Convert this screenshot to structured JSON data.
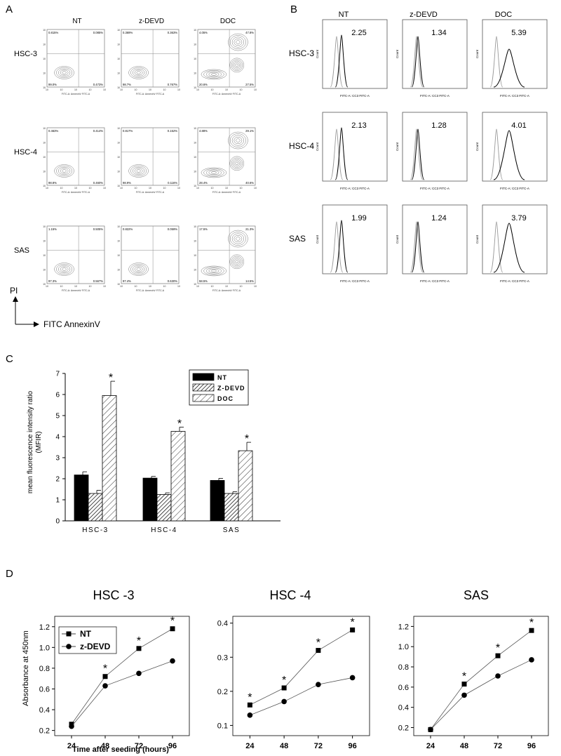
{
  "panel_letters": {
    "a": "A",
    "b": "B",
    "c": "C",
    "d": "D"
  },
  "treatments": [
    "NT",
    "z-DEVD",
    "DOC"
  ],
  "cell_lines": [
    "HSC-3",
    "HSC-4",
    "SAS"
  ],
  "panel_a": {
    "y_axis_label": "PI",
    "x_axis_label": "FITC AnnexinV",
    "plot_x_label": "FITC-A: AnnexinV FITC-A",
    "quadrants": [
      [
        [
          "0.815%",
          "0.085%",
          "99.0%",
          "0.473%"
        ],
        [
          "0.369%",
          "0.363%",
          "98.7%",
          "0.767%"
        ],
        [
          "4.05%",
          "47.8%",
          "20.6%",
          "27.5%"
        ]
      ],
      [
        [
          "0.463%",
          "0.414%",
          "98.8%",
          "0.460%"
        ],
        [
          "0.817%",
          "0.152%",
          "98.9%",
          "0.116%"
        ],
        [
          "4.88%",
          "29.1%",
          "28.4%",
          "40.6%"
        ]
      ],
      [
        [
          "1.15%",
          "0.505%",
          "97.3%",
          "0.567%"
        ],
        [
          "0.822%",
          "0.059%",
          "97.4%",
          "0.630%"
        ],
        [
          "17.5%",
          "21.3%",
          "58.5%",
          "14.5%"
        ]
      ]
    ]
  },
  "panel_b": {
    "y_axis_label": "Count",
    "x_axis_label": "FITC-A: CC3 FITC-A",
    "values": [
      [
        "2.25",
        "1.34",
        "5.39"
      ],
      [
        "2.13",
        "1.28",
        "4.01"
      ],
      [
        "1.99",
        "1.24",
        "3.79"
      ]
    ]
  },
  "panel_c": {
    "chart_data": {
      "type": "bar",
      "categories": [
        "HSC-3",
        "HSC-4",
        "SAS"
      ],
      "series": [
        {
          "name": "NT",
          "values": [
            2.18,
            2.03,
            1.92
          ],
          "errors": [
            0.15,
            0.08,
            0.1
          ],
          "fill": "#000000"
        },
        {
          "name": "Z-DEVD",
          "values": [
            1.3,
            1.25,
            1.3
          ],
          "errors": [
            0.15,
            0.08,
            0.08
          ],
          "fill": "dense-hatch"
        },
        {
          "name": "DOC",
          "values": [
            5.95,
            4.25,
            3.33
          ],
          "errors": [
            0.68,
            0.2,
            0.4
          ],
          "fill": "sparse-hatch"
        }
      ],
      "ylabel": "mean fluorescence intensity ratio (MFIR)",
      "ylabel_line1": "mean fluorescence intensity ratio",
      "ylabel_line2": "(MFIR)",
      "ylim": [
        0,
        7
      ],
      "yticks": [
        "0",
        "1",
        "2",
        "3",
        "4",
        "5",
        "6",
        "7"
      ],
      "significance": [
        [
          false,
          true,
          true
        ],
        [
          false,
          true,
          true
        ],
        [
          false,
          true,
          true
        ]
      ],
      "marker": "*",
      "legend": "top-right"
    }
  },
  "panel_d": {
    "ylabel": "Absorbance at 450nm",
    "xlabel": "Time after seeding (hours)",
    "legend": [
      "NT",
      "z-DEVD"
    ],
    "marker": "*",
    "chart_data": [
      {
        "type": "line",
        "title": "HSC -3",
        "x": [
          24,
          48,
          72,
          96
        ],
        "series": [
          {
            "name": "NT",
            "marker": "square",
            "values": [
              0.26,
              0.72,
              0.99,
              1.18
            ]
          },
          {
            "name": "z-DEVD",
            "marker": "circle",
            "values": [
              0.24,
              0.63,
              0.75,
              0.87
            ]
          }
        ],
        "ylim": [
          0.15,
          1.3
        ],
        "yticks": [
          "0.2",
          "0.4",
          "0.6",
          "0.8",
          "1.0",
          "1.2"
        ],
        "xticks": [
          "24",
          "48",
          "72",
          "96"
        ],
        "significant_x": [
          48,
          72,
          96
        ]
      },
      {
        "type": "line",
        "title": "HSC -4",
        "x": [
          24,
          48,
          72,
          96
        ],
        "series": [
          {
            "name": "NT",
            "marker": "square",
            "values": [
              0.16,
              0.21,
              0.32,
              0.38
            ]
          },
          {
            "name": "z-DEVD",
            "marker": "circle",
            "values": [
              0.13,
              0.17,
              0.22,
              0.24
            ]
          }
        ],
        "ylim": [
          0.07,
          0.42
        ],
        "yticks": [
          "0.1",
          "0.2",
          "0.3",
          "0.4"
        ],
        "xticks": [
          "24",
          "48",
          "72",
          "96"
        ],
        "significant_x": [
          24,
          48,
          72,
          96
        ]
      },
      {
        "type": "line",
        "title": "SAS",
        "x": [
          24,
          48,
          72,
          96
        ],
        "series": [
          {
            "name": "NT",
            "marker": "square",
            "values": [
              0.18,
              0.63,
              0.91,
              1.16
            ]
          },
          {
            "name": "z-DEVD",
            "marker": "circle",
            "values": [
              0.18,
              0.52,
              0.71,
              0.87
            ]
          }
        ],
        "ylim": [
          0.12,
          1.3
        ],
        "yticks": [
          "0.2",
          "0.4",
          "0.6",
          "0.8",
          "1.0",
          "1.2"
        ],
        "xticks": [
          "24",
          "48",
          "72",
          "96"
        ],
        "significant_x": [
          48,
          72,
          96
        ]
      }
    ]
  }
}
